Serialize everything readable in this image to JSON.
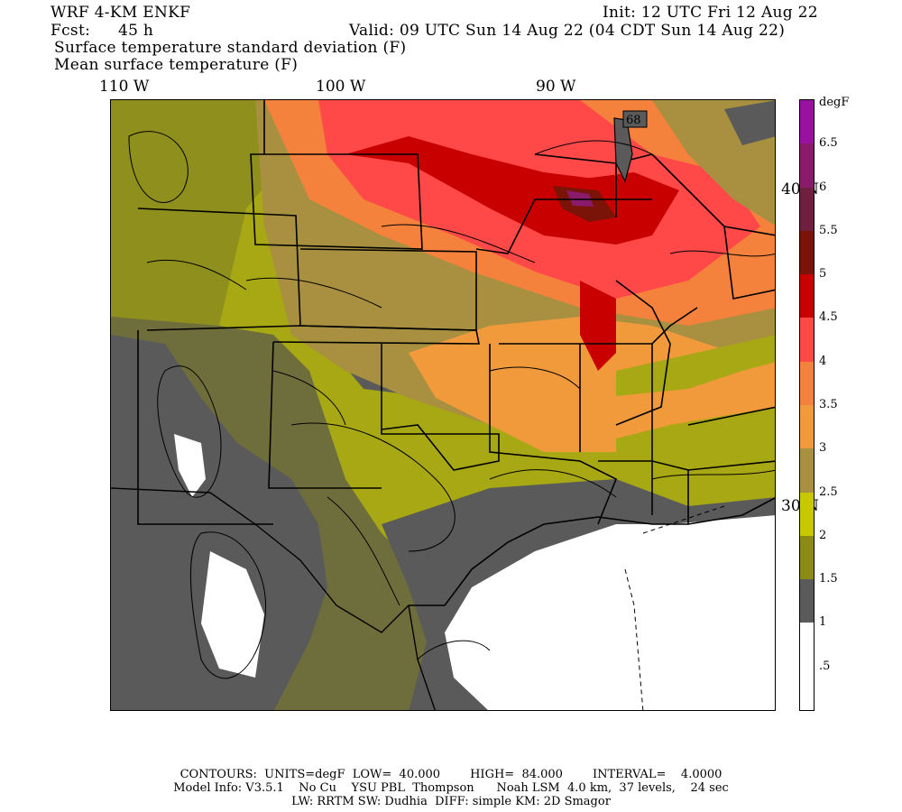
{
  "header": {
    "model": "WRF 4-KM ENKF",
    "init": "Init: 12 UTC Fri 12 Aug 22",
    "fcst_label": "Fcst:",
    "fcst_value": "45 h",
    "valid": "Valid: 09 UTC Sun 14 Aug 22 (04 CDT Sun 14 Aug 22)",
    "field1": "Surface temperature standard deviation (F)",
    "field2": "Mean surface temperature (F)"
  },
  "longitude_labels": [
    "110 W",
    "100 W",
    "90 W"
  ],
  "latitude_labels": [
    "40 N",
    "30 N"
  ],
  "map_labels": {
    "contour_label_1": "68"
  },
  "colorbar": {
    "unit": "degF",
    "labels": [
      ".5",
      "1",
      "1.5",
      "2",
      "2.5",
      "3",
      "3.5",
      "4",
      "4.5",
      "5",
      "5.5",
      "6",
      "6.5"
    ],
    "colors": [
      "#ffffff",
      "#ffffff",
      "#5a5a5a",
      "#8c8c14",
      "#c8c800",
      "#a89040",
      "#f09a3c",
      "#f5823c",
      "#ff4848",
      "#c80000",
      "#7a1408",
      "#6e2040",
      "#8a1a6a",
      "#9a10a0"
    ]
  },
  "footer": {
    "line1": "CONTOURS:  UNITS=degF  LOW=  40.000        HIGH=  84.000        INTERVAL=    4.0000",
    "line2": "Model Info: V3.5.1    No Cu    YSU PBL  Thompson      Noah LSM  4.0 km,  37 levels,    24 sec",
    "line3": "LW: RRTM SW: Dudhia  DIFF: simple KM: 2D Smagor"
  }
}
